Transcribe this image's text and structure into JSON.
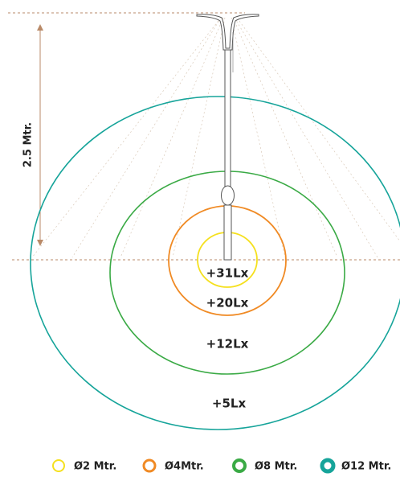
{
  "height_label": "2.5 Mtr.",
  "zones": [
    {
      "label": "+31Lx"
    },
    {
      "label": "+20Lx"
    },
    {
      "label": "+12Lx"
    },
    {
      "label": "+5Lx"
    }
  ],
  "legend": [
    {
      "label": "Ø2 Mtr."
    },
    {
      "label": "Ø4Mtr."
    },
    {
      "label": "Ø8 Mtr."
    },
    {
      "label": "Ø12 Mtr."
    }
  ]
}
